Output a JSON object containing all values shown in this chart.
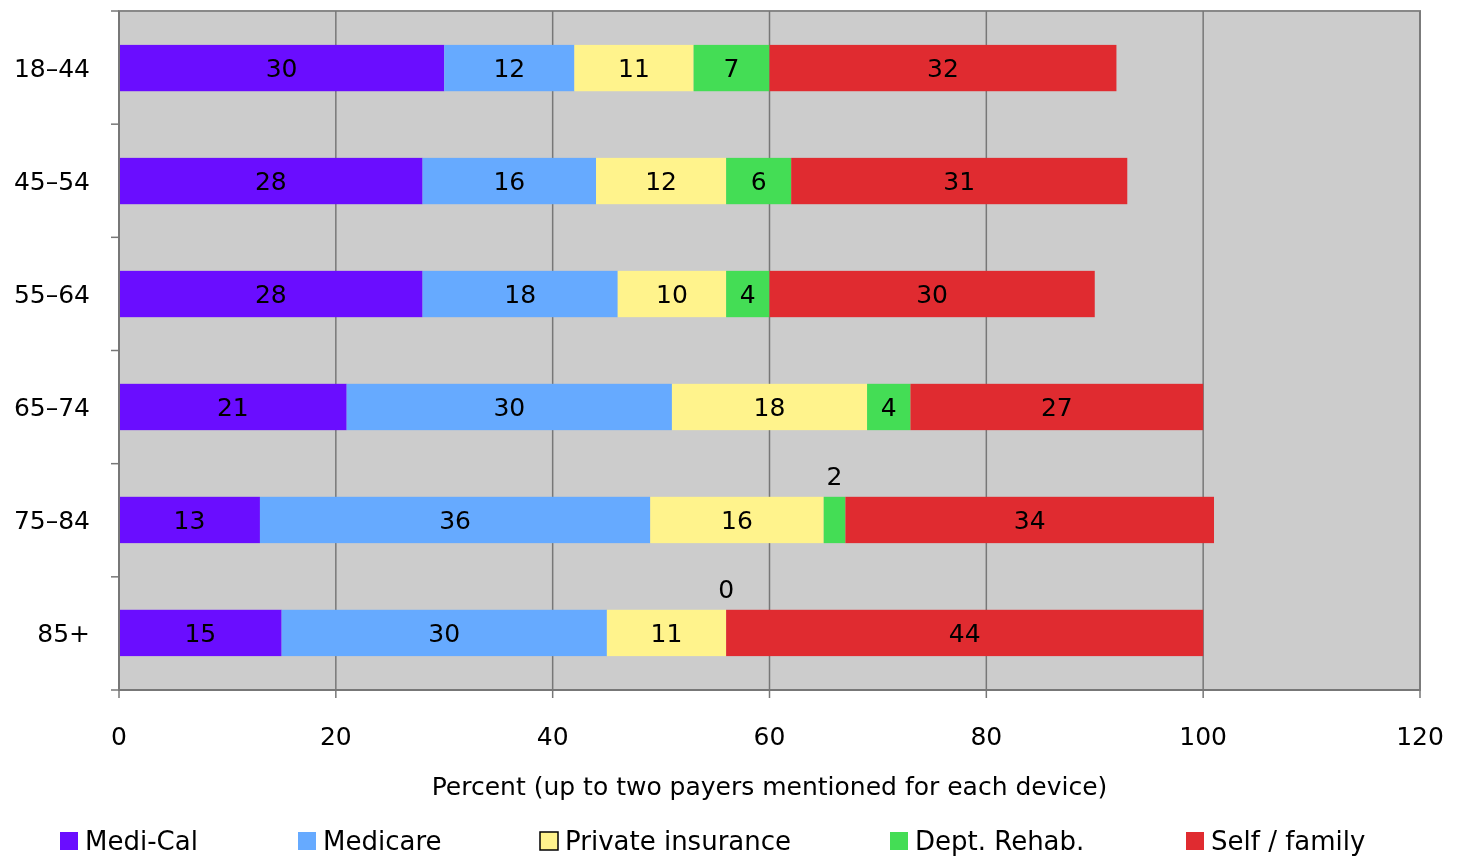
{
  "chart_data": {
    "type": "bar",
    "orientation": "horizontal",
    "stacked": true,
    "xlabel": "Percent (up to two payers mentioned for each device)",
    "categories": [
      "18–44",
      "45–54",
      "55–64",
      "65–74",
      "75–84",
      "85+"
    ],
    "series": [
      {
        "name": "Medi-Cal",
        "color": "#6a0dff",
        "values": [
          30,
          28,
          28,
          21,
          13,
          15
        ],
        "value_labels": [
          "30",
          "28",
          "28",
          "21",
          "13",
          "15"
        ]
      },
      {
        "name": "Medicare",
        "color": "#66aaff",
        "values": [
          12,
          16,
          18,
          30,
          36,
          30
        ],
        "value_labels": [
          "12",
          "16",
          "18",
          "30",
          "36",
          "30"
        ]
      },
      {
        "name": "Private insurance",
        "color": "#fff38c",
        "values": [
          11,
          12,
          10,
          18,
          16,
          11
        ],
        "value_labels": [
          "11",
          "12",
          "10",
          "18",
          "16",
          "11"
        ]
      },
      {
        "name": "Dept. Rehab.",
        "color": "#44dd55",
        "values": [
          7,
          6,
          4,
          4,
          2,
          0
        ],
        "value_labels": [
          "7",
          "6",
          "4",
          "4",
          "2",
          null
        ]
      },
      {
        "name": "Self / family",
        "color": "#e02b30",
        "values": [
          32,
          31,
          30,
          27,
          34,
          44
        ],
        "value_labels": [
          "32",
          "31",
          "30",
          "27",
          "34",
          "44"
        ]
      }
    ],
    "xlim": [
      0,
      120
    ],
    "xticks": [
      0,
      20,
      40,
      60,
      80,
      100,
      120
    ],
    "grid": "x",
    "legend": "bottom",
    "annotations": [
      {
        "text": "0",
        "x": 56,
        "y": "85+"
      }
    ]
  }
}
